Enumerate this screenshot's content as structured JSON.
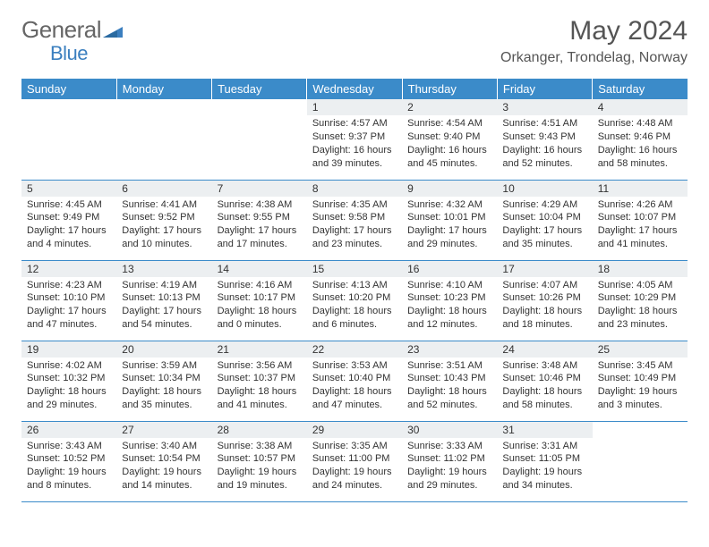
{
  "brand": {
    "part1": "General",
    "part2": "Blue"
  },
  "title": "May 2024",
  "location": "Orkanger, Trondelag, Norway",
  "colors": {
    "header_bg": "#3b8bc9",
    "header_text": "#ffffff",
    "daynum_bg": "#eceff1",
    "border": "#3b8bc9",
    "brand_gray": "#666666",
    "brand_blue": "#3b7fbf",
    "title_color": "#555555"
  },
  "weekday_labels": [
    "Sunday",
    "Monday",
    "Tuesday",
    "Wednesday",
    "Thursday",
    "Friday",
    "Saturday"
  ],
  "weeks": [
    [
      {
        "empty": true
      },
      {
        "empty": true
      },
      {
        "empty": true
      },
      {
        "num": "1",
        "sunrise": "Sunrise: 4:57 AM",
        "sunset": "Sunset: 9:37 PM",
        "daylight": "Daylight: 16 hours and 39 minutes."
      },
      {
        "num": "2",
        "sunrise": "Sunrise: 4:54 AM",
        "sunset": "Sunset: 9:40 PM",
        "daylight": "Daylight: 16 hours and 45 minutes."
      },
      {
        "num": "3",
        "sunrise": "Sunrise: 4:51 AM",
        "sunset": "Sunset: 9:43 PM",
        "daylight": "Daylight: 16 hours and 52 minutes."
      },
      {
        "num": "4",
        "sunrise": "Sunrise: 4:48 AM",
        "sunset": "Sunset: 9:46 PM",
        "daylight": "Daylight: 16 hours and 58 minutes."
      }
    ],
    [
      {
        "num": "5",
        "sunrise": "Sunrise: 4:45 AM",
        "sunset": "Sunset: 9:49 PM",
        "daylight": "Daylight: 17 hours and 4 minutes."
      },
      {
        "num": "6",
        "sunrise": "Sunrise: 4:41 AM",
        "sunset": "Sunset: 9:52 PM",
        "daylight": "Daylight: 17 hours and 10 minutes."
      },
      {
        "num": "7",
        "sunrise": "Sunrise: 4:38 AM",
        "sunset": "Sunset: 9:55 PM",
        "daylight": "Daylight: 17 hours and 17 minutes."
      },
      {
        "num": "8",
        "sunrise": "Sunrise: 4:35 AM",
        "sunset": "Sunset: 9:58 PM",
        "daylight": "Daylight: 17 hours and 23 minutes."
      },
      {
        "num": "9",
        "sunrise": "Sunrise: 4:32 AM",
        "sunset": "Sunset: 10:01 PM",
        "daylight": "Daylight: 17 hours and 29 minutes."
      },
      {
        "num": "10",
        "sunrise": "Sunrise: 4:29 AM",
        "sunset": "Sunset: 10:04 PM",
        "daylight": "Daylight: 17 hours and 35 minutes."
      },
      {
        "num": "11",
        "sunrise": "Sunrise: 4:26 AM",
        "sunset": "Sunset: 10:07 PM",
        "daylight": "Daylight: 17 hours and 41 minutes."
      }
    ],
    [
      {
        "num": "12",
        "sunrise": "Sunrise: 4:23 AM",
        "sunset": "Sunset: 10:10 PM",
        "daylight": "Daylight: 17 hours and 47 minutes."
      },
      {
        "num": "13",
        "sunrise": "Sunrise: 4:19 AM",
        "sunset": "Sunset: 10:13 PM",
        "daylight": "Daylight: 17 hours and 54 minutes."
      },
      {
        "num": "14",
        "sunrise": "Sunrise: 4:16 AM",
        "sunset": "Sunset: 10:17 PM",
        "daylight": "Daylight: 18 hours and 0 minutes."
      },
      {
        "num": "15",
        "sunrise": "Sunrise: 4:13 AM",
        "sunset": "Sunset: 10:20 PM",
        "daylight": "Daylight: 18 hours and 6 minutes."
      },
      {
        "num": "16",
        "sunrise": "Sunrise: 4:10 AM",
        "sunset": "Sunset: 10:23 PM",
        "daylight": "Daylight: 18 hours and 12 minutes."
      },
      {
        "num": "17",
        "sunrise": "Sunrise: 4:07 AM",
        "sunset": "Sunset: 10:26 PM",
        "daylight": "Daylight: 18 hours and 18 minutes."
      },
      {
        "num": "18",
        "sunrise": "Sunrise: 4:05 AM",
        "sunset": "Sunset: 10:29 PM",
        "daylight": "Daylight: 18 hours and 23 minutes."
      }
    ],
    [
      {
        "num": "19",
        "sunrise": "Sunrise: 4:02 AM",
        "sunset": "Sunset: 10:32 PM",
        "daylight": "Daylight: 18 hours and 29 minutes."
      },
      {
        "num": "20",
        "sunrise": "Sunrise: 3:59 AM",
        "sunset": "Sunset: 10:34 PM",
        "daylight": "Daylight: 18 hours and 35 minutes."
      },
      {
        "num": "21",
        "sunrise": "Sunrise: 3:56 AM",
        "sunset": "Sunset: 10:37 PM",
        "daylight": "Daylight: 18 hours and 41 minutes."
      },
      {
        "num": "22",
        "sunrise": "Sunrise: 3:53 AM",
        "sunset": "Sunset: 10:40 PM",
        "daylight": "Daylight: 18 hours and 47 minutes."
      },
      {
        "num": "23",
        "sunrise": "Sunrise: 3:51 AM",
        "sunset": "Sunset: 10:43 PM",
        "daylight": "Daylight: 18 hours and 52 minutes."
      },
      {
        "num": "24",
        "sunrise": "Sunrise: 3:48 AM",
        "sunset": "Sunset: 10:46 PM",
        "daylight": "Daylight: 18 hours and 58 minutes."
      },
      {
        "num": "25",
        "sunrise": "Sunrise: 3:45 AM",
        "sunset": "Sunset: 10:49 PM",
        "daylight": "Daylight: 19 hours and 3 minutes."
      }
    ],
    [
      {
        "num": "26",
        "sunrise": "Sunrise: 3:43 AM",
        "sunset": "Sunset: 10:52 PM",
        "daylight": "Daylight: 19 hours and 8 minutes."
      },
      {
        "num": "27",
        "sunrise": "Sunrise: 3:40 AM",
        "sunset": "Sunset: 10:54 PM",
        "daylight": "Daylight: 19 hours and 14 minutes."
      },
      {
        "num": "28",
        "sunrise": "Sunrise: 3:38 AM",
        "sunset": "Sunset: 10:57 PM",
        "daylight": "Daylight: 19 hours and 19 minutes."
      },
      {
        "num": "29",
        "sunrise": "Sunrise: 3:35 AM",
        "sunset": "Sunset: 11:00 PM",
        "daylight": "Daylight: 19 hours and 24 minutes."
      },
      {
        "num": "30",
        "sunrise": "Sunrise: 3:33 AM",
        "sunset": "Sunset: 11:02 PM",
        "daylight": "Daylight: 19 hours and 29 minutes."
      },
      {
        "num": "31",
        "sunrise": "Sunrise: 3:31 AM",
        "sunset": "Sunset: 11:05 PM",
        "daylight": "Daylight: 19 hours and 34 minutes."
      },
      {
        "empty": true
      }
    ]
  ]
}
